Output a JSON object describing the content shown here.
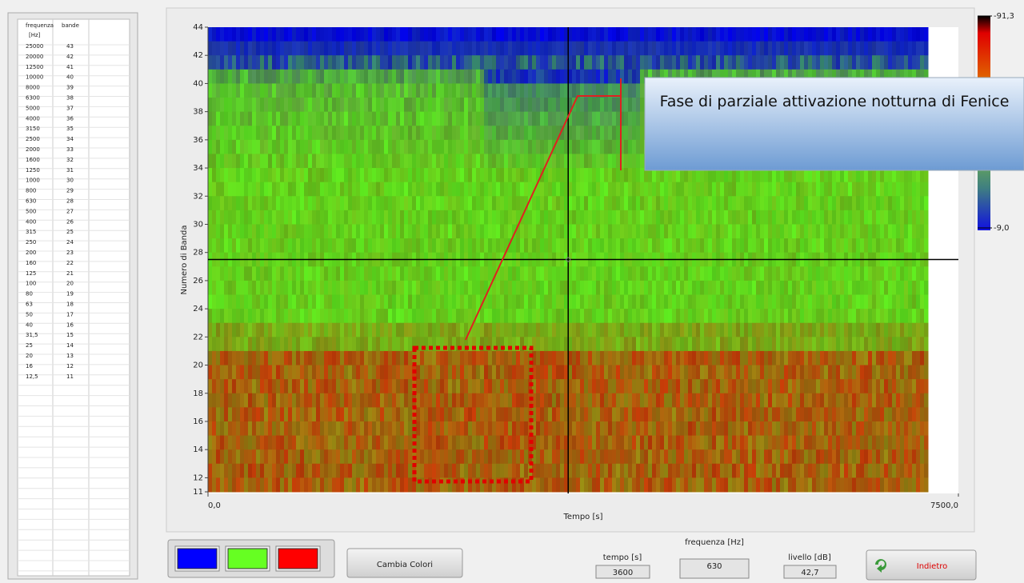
{
  "table": {
    "headers": [
      "frequenza",
      "bande"
    ],
    "unit": "[Hz]",
    "rows": [
      [
        "25000",
        "43"
      ],
      [
        "20000",
        "42"
      ],
      [
        "12500",
        "41"
      ],
      [
        "10000",
        "40"
      ],
      [
        "8000",
        "39"
      ],
      [
        "6300",
        "38"
      ],
      [
        "5000",
        "37"
      ],
      [
        "4000",
        "36"
      ],
      [
        "3150",
        "35"
      ],
      [
        "2500",
        "34"
      ],
      [
        "2000",
        "33"
      ],
      [
        "1600",
        "32"
      ],
      [
        "1250",
        "31"
      ],
      [
        "1000",
        "30"
      ],
      [
        "800",
        "29"
      ],
      [
        "630",
        "28"
      ],
      [
        "500",
        "27"
      ],
      [
        "400",
        "26"
      ],
      [
        "315",
        "25"
      ],
      [
        "250",
        "24"
      ],
      [
        "200",
        "23"
      ],
      [
        "160",
        "22"
      ],
      [
        "125",
        "21"
      ],
      [
        "100",
        "20"
      ],
      [
        "80",
        "19"
      ],
      [
        "63",
        "18"
      ],
      [
        "50",
        "17"
      ],
      [
        "40",
        "16"
      ],
      [
        "31,5",
        "15"
      ],
      [
        "25",
        "14"
      ],
      [
        "20",
        "13"
      ],
      [
        "16",
        "12"
      ],
      [
        "12,5",
        "11"
      ]
    ]
  },
  "graph": {
    "y_label": "Numero di Banda",
    "x_label": "Tempo [s]",
    "ylim": [
      11,
      44
    ],
    "yticks": [
      11,
      12,
      14,
      16,
      18,
      20,
      22,
      24,
      26,
      28,
      30,
      32,
      34,
      36,
      38,
      40,
      42,
      44
    ],
    "xlim": [
      0,
      7500
    ],
    "xticks": [
      {
        "value": 0,
        "label": "0,0"
      },
      {
        "value": 7500,
        "label": "7500,0"
      }
    ],
    "cursor": {
      "x": 3600,
      "y": 27.5
    },
    "annotation": "Fase di parziale attivazione notturna di Fenice",
    "colorbar_ticks": [
      {
        "value": -91.3,
        "label": "-91,3"
      },
      {
        "value": -9.0,
        "label": "-9,0"
      }
    ]
  },
  "palette": [
    "#0000ff",
    "#66ff22",
    "#ff0000"
  ],
  "buttons": {
    "colors": "Cambia Colori",
    "back": "Indietro"
  },
  "readouts": [
    {
      "label": "tempo [s]",
      "value": "3600"
    },
    {
      "label": "frequenza [Hz]",
      "value": "630"
    },
    {
      "label": "livello [dB]",
      "value": "42,7"
    }
  ]
}
